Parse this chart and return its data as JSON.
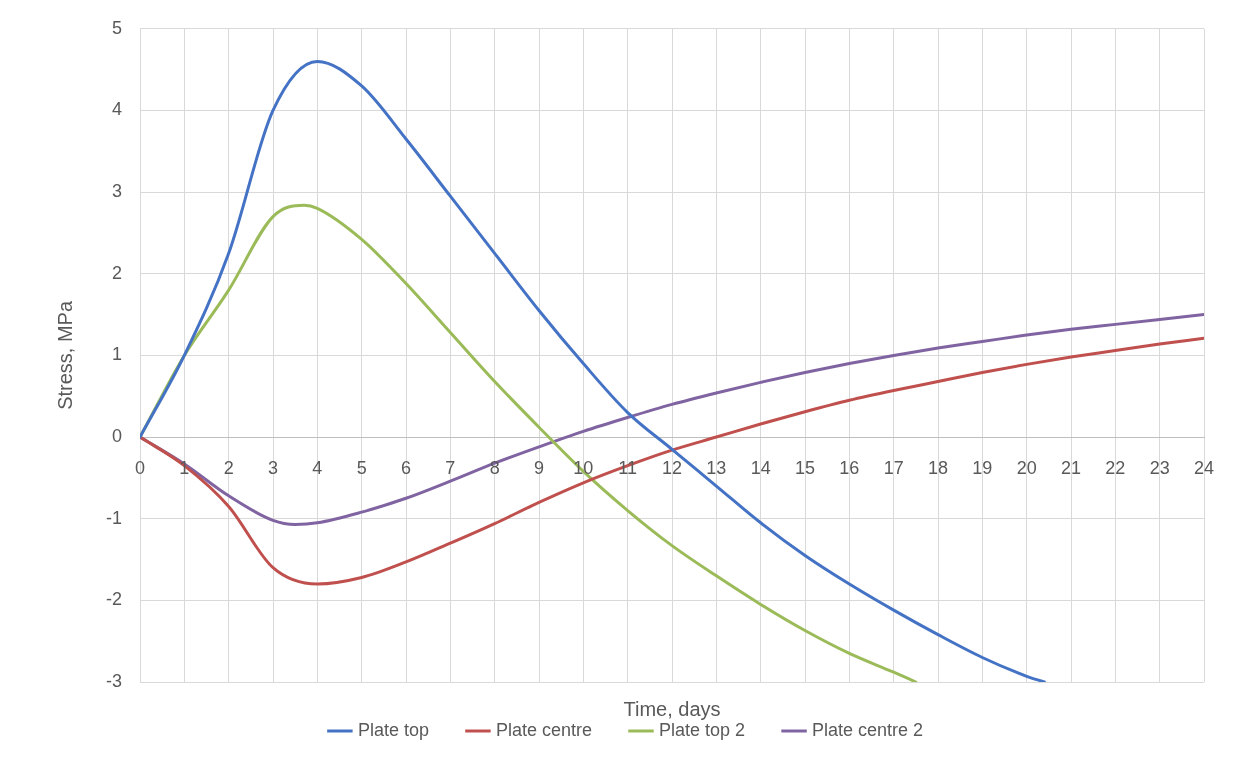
{
  "chart_data": {
    "type": "line",
    "xlabel": "Time, days",
    "ylabel": "Stress, MPa",
    "xlim": [
      0,
      24
    ],
    "xticks": [
      0,
      1,
      2,
      3,
      4,
      5,
      6,
      7,
      8,
      9,
      10,
      11,
      12,
      13,
      14,
      15,
      16,
      17,
      18,
      19,
      20,
      21,
      22,
      23,
      24
    ],
    "ylim": [
      -3,
      5
    ],
    "yticks": [
      -3,
      -2,
      -1,
      0,
      1,
      2,
      3,
      4,
      5
    ],
    "grid": true,
    "legend": "bottom",
    "marker": "none",
    "line_style": "solid",
    "series": [
      {
        "name": "Plate top",
        "color": "#4472c4",
        "x": [
          0,
          1,
          2,
          3,
          4,
          5,
          6,
          7,
          8,
          9,
          10,
          11,
          12,
          13,
          14,
          15,
          16,
          17,
          18,
          19,
          20,
          20.4
        ],
        "values": [
          0,
          1.0,
          2.25,
          4.0,
          4.6,
          4.3,
          3.65,
          2.95,
          2.25,
          1.55,
          0.9,
          0.3,
          -0.15,
          -0.6,
          -1.05,
          -1.45,
          -1.8,
          -2.12,
          -2.42,
          -2.7,
          -2.93,
          -3
        ]
      },
      {
        "name": "Plate centre",
        "color": "#c0504d",
        "x": [
          0,
          1,
          2,
          3,
          4,
          5,
          6,
          7,
          8,
          9,
          10,
          11,
          12,
          13,
          14,
          15,
          16,
          17,
          18,
          19,
          20,
          21,
          22,
          23,
          24
        ],
        "values": [
          0,
          -0.35,
          -0.85,
          -1.6,
          -1.8,
          -1.72,
          -1.53,
          -1.3,
          -1.06,
          -0.8,
          -0.56,
          -0.35,
          -0.16,
          0,
          0.16,
          0.31,
          0.45,
          0.57,
          0.68,
          0.79,
          0.89,
          0.98,
          1.06,
          1.14,
          1.21
        ]
      },
      {
        "name": "Plate top 2",
        "color": "#9bbb59",
        "x": [
          0,
          1,
          2,
          3,
          3.7,
          4,
          5,
          6,
          7,
          8,
          9,
          10,
          11,
          12,
          13,
          14,
          15,
          16,
          17,
          17.5
        ],
        "values": [
          0,
          1.0,
          1.8,
          2.7,
          2.84,
          2.8,
          2.42,
          1.88,
          1.28,
          0.68,
          0.12,
          -0.42,
          -0.9,
          -1.33,
          -1.7,
          -2.05,
          -2.37,
          -2.65,
          -2.88,
          -3
        ]
      },
      {
        "name": "Plate centre 2",
        "color": "#8064a2",
        "x": [
          0,
          1,
          2,
          3,
          3.5,
          4,
          5,
          6,
          7,
          8,
          9,
          10,
          11,
          12,
          13,
          14,
          15,
          16,
          17,
          18,
          19,
          20,
          21,
          22,
          23,
          24
        ],
        "values": [
          0,
          -0.33,
          -0.72,
          -1.02,
          -1.07,
          -1.05,
          -0.92,
          -0.75,
          -0.54,
          -0.32,
          -0.12,
          0.07,
          0.24,
          0.4,
          0.54,
          0.67,
          0.79,
          0.9,
          1.0,
          1.09,
          1.17,
          1.25,
          1.32,
          1.38,
          1.44,
          1.5
        ]
      }
    ]
  }
}
